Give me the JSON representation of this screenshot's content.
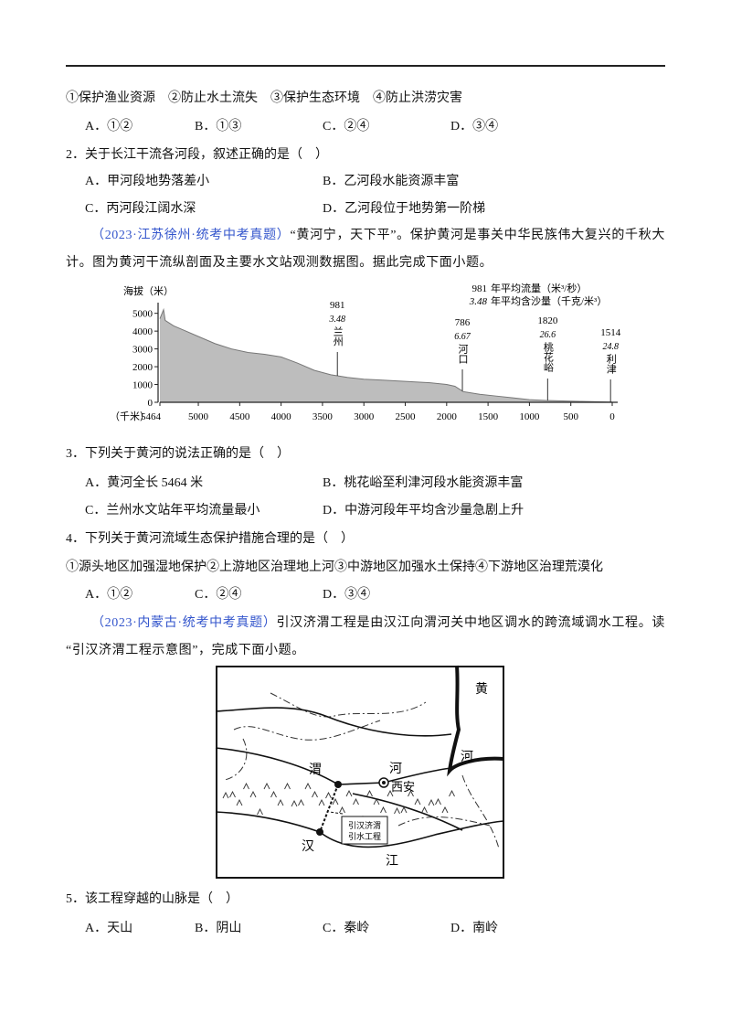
{
  "q1": {
    "statements": "①保护渔业资源　②防止水土流失　③保护生态环境　④防止洪涝灾害",
    "choices": [
      "A．①②",
      "B．①③",
      "C．②④",
      "D．③④"
    ]
  },
  "q2": {
    "stem": "2．关于长江干流各河段，叙述正确的是（　）",
    "choices": [
      "A．甲河段地势落差小",
      "B．乙河段水能资源丰富",
      "C．丙河段江阔水深",
      "D．乙河段位于地势第一阶梯"
    ]
  },
  "passage1": {
    "source": "（2023·江苏徐州·统考中考真题）",
    "text": "“黄河宁，天下平”。保护黄河是事关中华民族伟大复兴的千秋大计。图为黄河干流纵剖面及主要水文站观测数据图。据此完成下面小题。"
  },
  "chart_data": {
    "type": "area",
    "y_label": "海拔（米）",
    "x_label": "（千米）",
    "x": [
      5464,
      5420,
      5400,
      5300,
      5200,
      5000,
      4800,
      4600,
      4400,
      4200,
      4000,
      3800,
      3600,
      3400,
      3200,
      3000,
      2800,
      2600,
      2400,
      2200,
      2000,
      1900,
      1800,
      1600,
      1400,
      1200,
      1000,
      800,
      600,
      400,
      200,
      0
    ],
    "values": [
      4700,
      5200,
      4600,
      4300,
      4100,
      3700,
      3300,
      3000,
      2800,
      2700,
      2550,
      2200,
      1800,
      1550,
      1400,
      1300,
      1250,
      1200,
      1150,
      1100,
      1000,
      900,
      600,
      450,
      350,
      250,
      150,
      100,
      80,
      50,
      30,
      10
    ],
    "color": "#bdbdbd",
    "xlim": [
      5464,
      0
    ],
    "ylim": [
      0,
      5600
    ],
    "xticks": [
      5464,
      5000,
      4500,
      4000,
      3500,
      3000,
      2500,
      2000,
      1500,
      1000,
      500,
      0
    ],
    "yticks": [
      0,
      1000,
      2000,
      3000,
      4000,
      5000
    ],
    "legend": [
      {
        "sample": "981",
        "text": "年平均流量（米³/秒）"
      },
      {
        "sample": "3.48",
        "text": "年平均含沙量（千克/米³）"
      }
    ],
    "stations": [
      {
        "name": "兰州",
        "x": 3320,
        "flow": 981,
        "sediment": 3.48
      },
      {
        "name": "河口",
        "x": 1810,
        "flow": 786,
        "sediment": 6.67
      },
      {
        "name": "桃花峪",
        "x": 780,
        "flow": 1820,
        "sediment": 26.6
      },
      {
        "name": "利津",
        "x": 20,
        "flow": 1514,
        "sediment": 24.8
      }
    ]
  },
  "q3": {
    "stem": "3．下列关于黄河的说法正确的是（　）",
    "choices": [
      "A．黄河全长 5464 米",
      "B．桃花峪至利津河段水能资源丰富",
      "C．兰州水文站年平均流量最小",
      "D．中游河段年平均含沙量急剧上升"
    ]
  },
  "q4": {
    "stem": "4．下列关于黄河流域生态保护措施合理的是（　）",
    "statements": "①源头地区加强湿地保护②上游地区治理地上河③中游地区加强水土保持④下游地区治理荒漠化",
    "choices": [
      "A．①②",
      "C．②④",
      "D．③④"
    ]
  },
  "passage2": {
    "source": "（2023·内蒙古·统考中考真题）",
    "text": "引汉济渭工程是由汉江向渭河关中地区调水的跨流域调水工程。读“引汉济渭工程示意图”，完成下面小题。"
  },
  "map": {
    "labels": [
      "黄",
      "河",
      "渭",
      "河",
      "西安",
      "汉",
      "江",
      "引汉济渭",
      "引水工程"
    ]
  },
  "q5": {
    "stem": "5．该工程穿越的山脉是（　）",
    "choices": [
      "A．天山",
      "B．阴山",
      "C．秦岭",
      "D．南岭"
    ]
  }
}
